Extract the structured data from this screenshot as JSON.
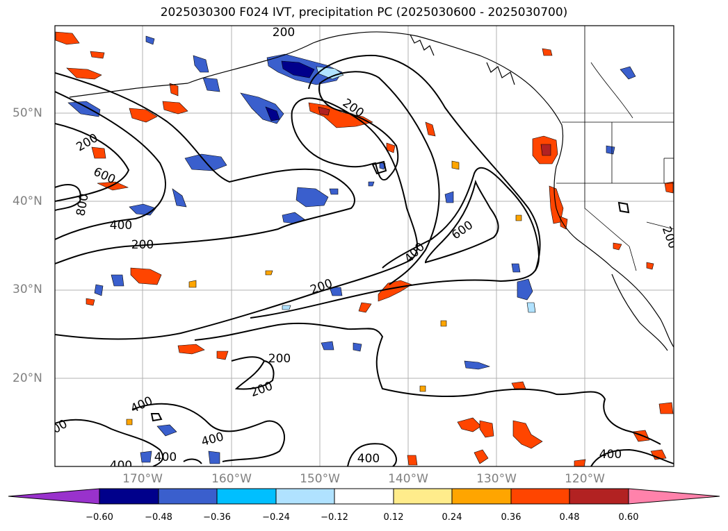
{
  "title": "2025030300 F024 IVT, precipitation PC (2025030600 - 2025030700)",
  "latitude_labels": [
    "50°N",
    "40°N",
    "30°N",
    "20°N"
  ],
  "longitude_labels": [
    "170°W",
    "160°W",
    "150°W",
    "140°W",
    "130°W",
    "120°W"
  ],
  "ivt_contour_labels": [
    "200",
    "200",
    "200",
    "200",
    "200",
    "200",
    "200",
    "200",
    "200",
    "400",
    "400",
    "400",
    "400",
    "400",
    "400",
    "400",
    "400",
    "600",
    "600",
    "800"
  ],
  "colorbar": {
    "ticks": [
      "−0.60",
      "−0.48",
      "−0.36",
      "−0.24",
      "−0.12",
      "0.12",
      "0.24",
      "0.36",
      "0.48",
      "0.60"
    ],
    "colors": [
      "#9932cc",
      "#00008b",
      "#3a5fcd",
      "#00bfff",
      "#b0e2ff",
      "#ffffff",
      "#ffec8b",
      "#ffa500",
      "#ff4500",
      "#b22222",
      "#ff82ab"
    ]
  }
}
